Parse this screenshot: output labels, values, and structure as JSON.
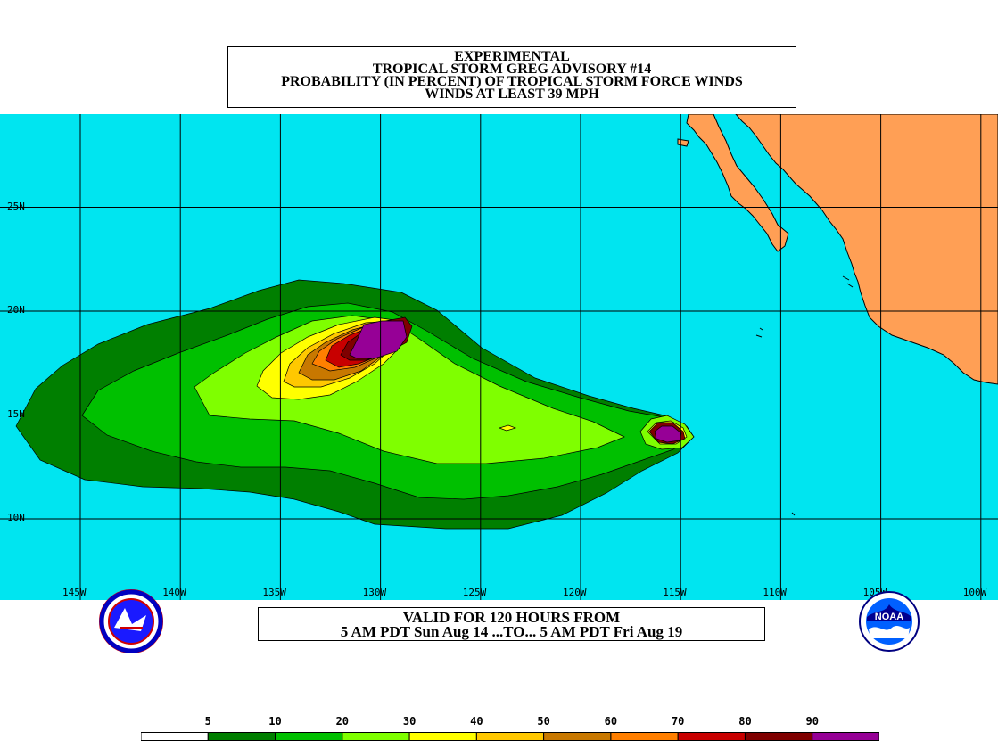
{
  "title": {
    "line1": "EXPERIMENTAL",
    "line2": "TROPICAL STORM GREG ADVISORY #14",
    "line3": "PROBABILITY (IN PERCENT) OF TROPICAL STORM FORCE WINDS",
    "line4": "WINDS AT LEAST 39 MPH"
  },
  "valid": {
    "line1": "VALID FOR 120 HOURS FROM",
    "line2": "5 AM PDT Sun Aug 14 ...TO... 5 AM PDT Fri Aug 19"
  },
  "map": {
    "ocean_color": "#00e5f0",
    "land_color": "#ff9f55",
    "lat_labels": [
      "25N",
      "20N",
      "15N",
      "10N"
    ],
    "lon_labels": [
      "145W",
      "140W",
      "135W",
      "130W",
      "125W",
      "120W",
      "115W",
      "110W",
      "105W",
      "100W"
    ],
    "lat_values": [
      25,
      20,
      15,
      10
    ],
    "lon_values": [
      145,
      140,
      135,
      130,
      125,
      120,
      115,
      110,
      105,
      100
    ]
  },
  "legend": {
    "labels": [
      "5",
      "10",
      "20",
      "30",
      "40",
      "50",
      "60",
      "70",
      "80",
      "90"
    ],
    "colors": [
      "#ffffff",
      "#007f00",
      "#00c000",
      "#7fff00",
      "#ffff00",
      "#ffc800",
      "#c87800",
      "#ff7f00",
      "#c80000",
      "#7f0000",
      "#960096"
    ]
  },
  "logos": {
    "left": "nws-logo",
    "right": "noaa-logo",
    "right_text": "NOAA"
  }
}
